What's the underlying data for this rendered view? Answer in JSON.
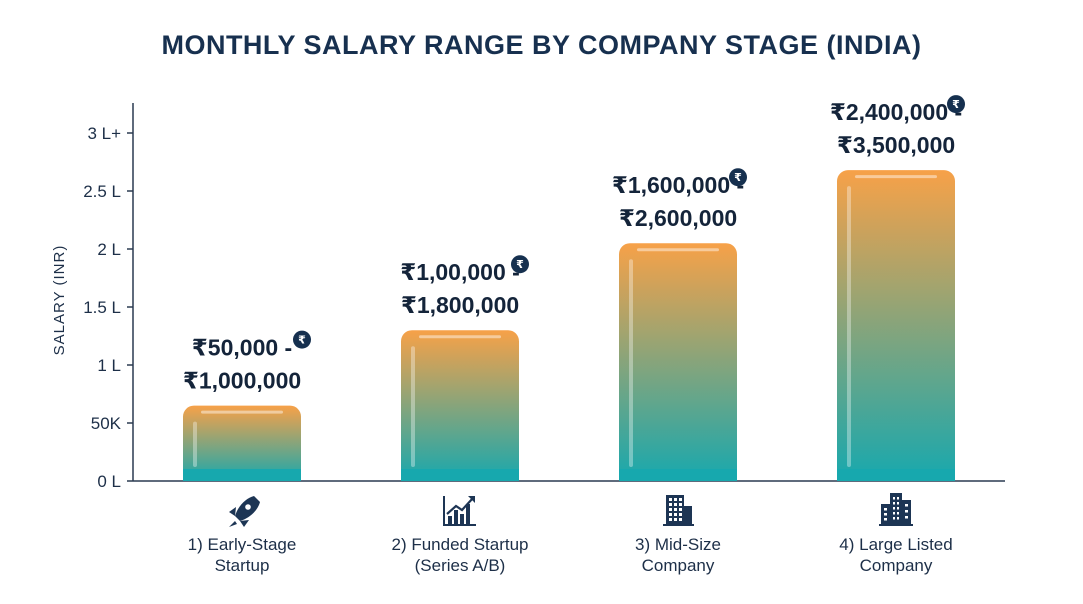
{
  "chart_data": {
    "type": "bar",
    "title": "MONTHLY SALARY RANGE BY COMPANY STAGE (INDIA)",
    "xlabel": "",
    "ylabel": "SALARY (INR)",
    "ylim": [
      0,
      300000
    ],
    "y_ticks": [
      {
        "value": 0,
        "label": "0 L"
      },
      {
        "value": 50000,
        "label": "50K"
      },
      {
        "value": 100000,
        "label": "1 L"
      },
      {
        "value": 150000,
        "label": "1.5 L"
      },
      {
        "value": 200000,
        "label": "2 L"
      },
      {
        "value": 250000,
        "label": "2.5 L"
      },
      {
        "value": 300000,
        "label": "3 L+"
      }
    ],
    "categories": [
      {
        "line1": "1) Early-Stage",
        "line2": "Startup",
        "icon": "rocket-icon"
      },
      {
        "line1": "2) Funded Startup",
        "line2": "(Series A/B)",
        "icon": "growth-chart-icon"
      },
      {
        "line1": "3) Mid-Size",
        "line2": "Company",
        "icon": "office-building-icon"
      },
      {
        "line1": "4) Large Listed",
        "line2": "Company",
        "icon": "city-buildings-icon"
      }
    ],
    "values": [
      65000,
      130000,
      205000,
      268000
    ],
    "range_labels": [
      {
        "line1": "₹50,000 -",
        "line2": "₹1,000,000"
      },
      {
        "line1": "₹1,00,000 -",
        "line2": "₹1,800,000"
      },
      {
        "line1": "₹1,600,000 -",
        "line2": "₹2,600,000"
      },
      {
        "line1": "₹2,400,000 -",
        "line2": "₹3,500,000"
      }
    ],
    "badge_symbol": "₹",
    "grid": false,
    "legend": "none"
  },
  "colors": {
    "bar_top": "#f7a148",
    "bar_bottom": "#17a8ae",
    "axis": "#2a3a50",
    "badge": "#16304f",
    "icon": "#1d3554"
  }
}
